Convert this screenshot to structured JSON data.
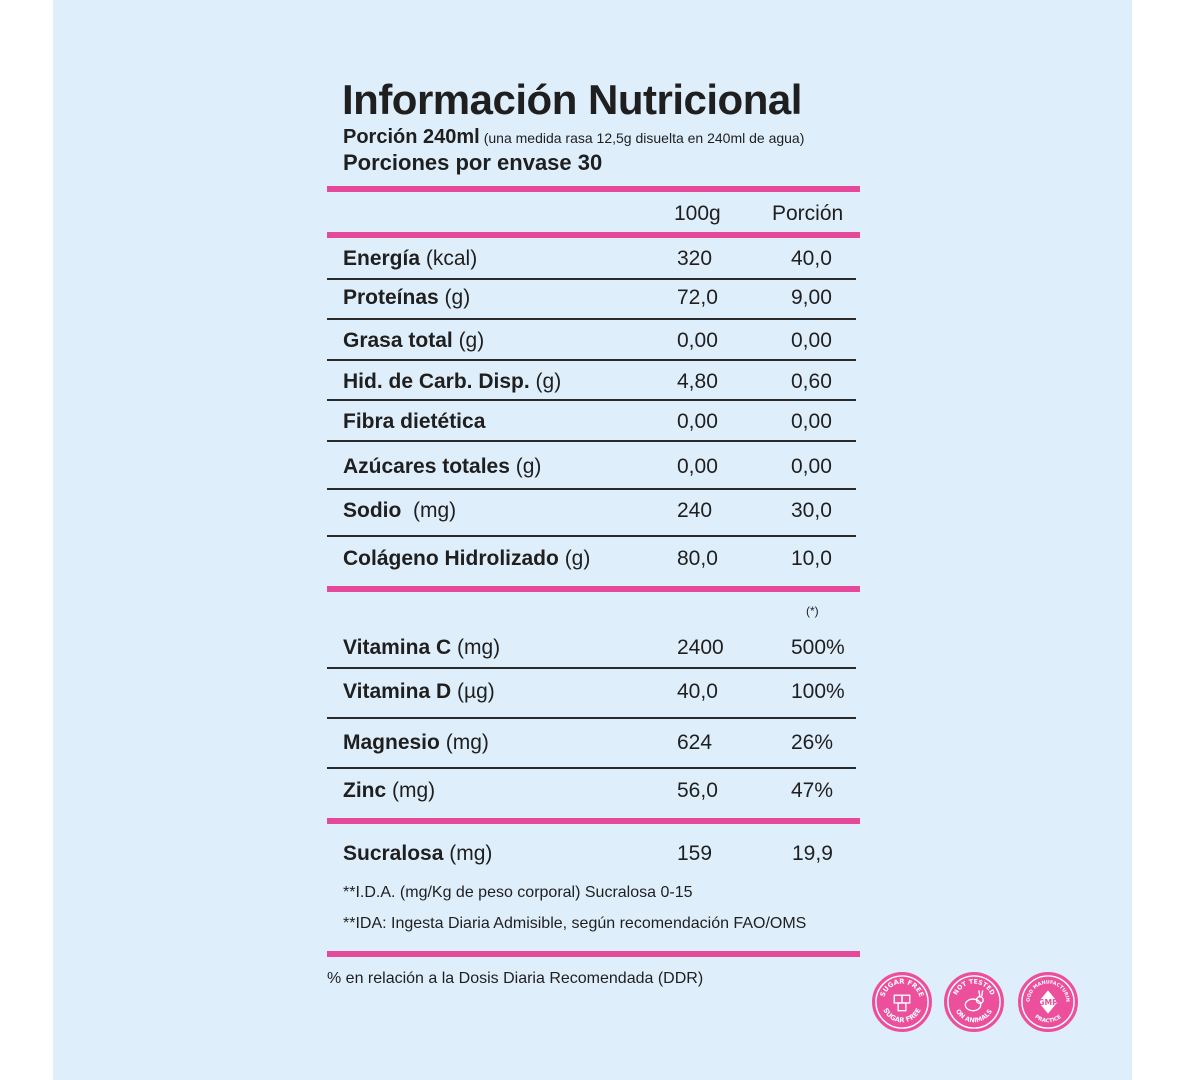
{
  "header": {
    "title": "Información Nutricional",
    "serving_label": "Porción 240ml",
    "serving_note": "(una medida rasa 12,5g disuelta en 240ml de agua)",
    "servings_per_container": "Porciones por envase 30"
  },
  "columns": {
    "per_100g": "100g",
    "per_serving": "Porción"
  },
  "nutrients": [
    {
      "name": "Energía",
      "unit": "(kcal)",
      "per_100g": "320",
      "per_serving": "40,0"
    },
    {
      "name": "Proteínas",
      "unit": "(g)",
      "per_100g": "72,0",
      "per_serving": "9,00"
    },
    {
      "name": "Grasa total",
      "unit": "(g)",
      "per_100g": "0,00",
      "per_serving": "0,00"
    },
    {
      "name": "Hid. de Carb. Disp.",
      "unit": "(g)",
      "per_100g": "4,80",
      "per_serving": "0,60"
    },
    {
      "name": "Fibra dietética",
      "unit": "",
      "per_100g": "0,00",
      "per_serving": "0,00"
    },
    {
      "name": "Azúcares totales",
      "unit": "(g)",
      "per_100g": "0,00",
      "per_serving": "0,00"
    },
    {
      "name": "Sodio",
      "unit": "(mg)",
      "per_100g": "240",
      "per_serving": "30,0"
    },
    {
      "name": "Colágeno Hidrolizado",
      "unit": "(g)",
      "per_100g": "80,0",
      "per_serving": "10,0"
    }
  ],
  "vitamins_marker": "(*)",
  "vitamins": [
    {
      "name": "Vitamina C",
      "unit": "(mg)",
      "per_100g": "2400",
      "per_serving": "500%"
    },
    {
      "name": "Vitamina D",
      "unit": "(µg)",
      "per_100g": "40,0",
      "per_serving": "100%"
    },
    {
      "name": "Magnesio",
      "unit": "(mg)",
      "per_100g": "624",
      "per_serving": "26%"
    },
    {
      "name": "Zinc",
      "unit": "(mg)",
      "per_100g": "56,0",
      "per_serving": "47%"
    }
  ],
  "sweetener": {
    "name": "Sucralosa",
    "unit": "(mg)",
    "per_100g": "159",
    "per_serving": "19,9"
  },
  "footnotes": [
    "**I.D.A. (mg/Kg de peso corporal) Sucralosa 0-15",
    "**IDA: Ingesta Diaria Admisible, según recomendación FAO/OMS"
  ],
  "ddr_note": "% en relación a la Dosis Diaria Recomendada (DDR)",
  "badges": [
    {
      "icon": "sugar-free-icon",
      "label": "SUGAR FREE"
    },
    {
      "icon": "not-tested-on-animals-icon",
      "label": "NOT TESTED ON ANIMALS"
    },
    {
      "icon": "gmp-icon",
      "label": "GOOD MANUFACTURING PRACTICE",
      "center": "GMP"
    }
  ],
  "colors": {
    "accent": "#e6489a",
    "background": "#dfeefb",
    "text": "#1f1f1f"
  }
}
